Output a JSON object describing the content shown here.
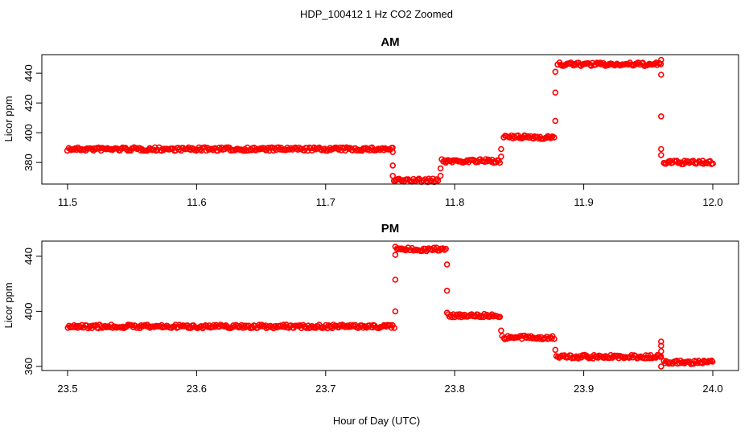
{
  "chart_data": {
    "type": "scatter",
    "title": "HDP_100412  1 Hz CO2 Zoomed",
    "xlabel": "Hour of Day (UTC)",
    "marker_color": "#ff0000",
    "marker": "open-circle",
    "panels": [
      {
        "title": "AM",
        "ylabel": "Licor ppm",
        "xlim": [
          11.5,
          12.0
        ],
        "ylim": [
          365.5,
          452.5
        ],
        "x_ticks": [
          "11.5",
          "11.6",
          "11.7",
          "11.8",
          "11.9",
          "12.0"
        ],
        "y_ticks": [
          "380",
          "400",
          "420",
          "440"
        ],
        "segments": [
          {
            "x": [
              11.5,
              11.752
            ],
            "y": 389
          },
          {
            "x": [
              11.753,
              11.787
            ],
            "y": 368
          },
          {
            "x": [
              11.79,
              11.835
            ],
            "y": 381
          },
          {
            "x": [
              11.838,
              11.877
            ],
            "y": 397
          },
          {
            "x": [
              11.88,
              11.96
            ],
            "y": 446
          },
          {
            "x": [
              11.962,
              12.0
            ],
            "y": 380
          }
        ],
        "transitions": [
          {
            "x": 11.752,
            "y": [
              387,
              378,
              371
            ]
          },
          {
            "x": 11.789,
            "y": [
              371,
              376
            ]
          },
          {
            "x": 11.836,
            "y": [
              384,
              389
            ]
          },
          {
            "x": 11.878,
            "y": [
              408,
              427,
              441
            ]
          },
          {
            "x": 11.96,
            "y": [
              449,
              439,
              411,
              389,
              385
            ]
          }
        ]
      },
      {
        "title": "PM",
        "ylabel": "Licor ppm",
        "xlim": [
          23.5,
          24.0
        ],
        "ylim": [
          357,
          451
        ],
        "x_ticks": [
          "23.5",
          "23.6",
          "23.7",
          "23.8",
          "23.9",
          "24.0"
        ],
        "y_ticks": [
          "360",
          "400",
          "440"
        ],
        "segments": [
          {
            "x": [
              23.5,
              23.753
            ],
            "y": 389
          },
          {
            "x": [
              23.755,
              23.793
            ],
            "y": 445
          },
          {
            "x": [
              23.795,
              23.835
            ],
            "y": 397
          },
          {
            "x": [
              23.837,
              23.877
            ],
            "y": 381
          },
          {
            "x": [
              23.879,
              23.96
            ],
            "y": 367
          },
          {
            "x": [
              23.962,
              24.0
            ],
            "y": 363
          }
        ],
        "transitions": [
          {
            "x": 23.754,
            "y": [
              400,
              423,
              441,
              447
            ]
          },
          {
            "x": 23.794,
            "y": [
              434,
              415,
              399
            ]
          },
          {
            "x": 23.836,
            "y": [
              386
            ]
          },
          {
            "x": 23.878,
            "y": [
              372
            ]
          },
          {
            "x": 23.96,
            "y": [
              360,
              378,
              375,
              371
            ]
          }
        ]
      }
    ]
  }
}
